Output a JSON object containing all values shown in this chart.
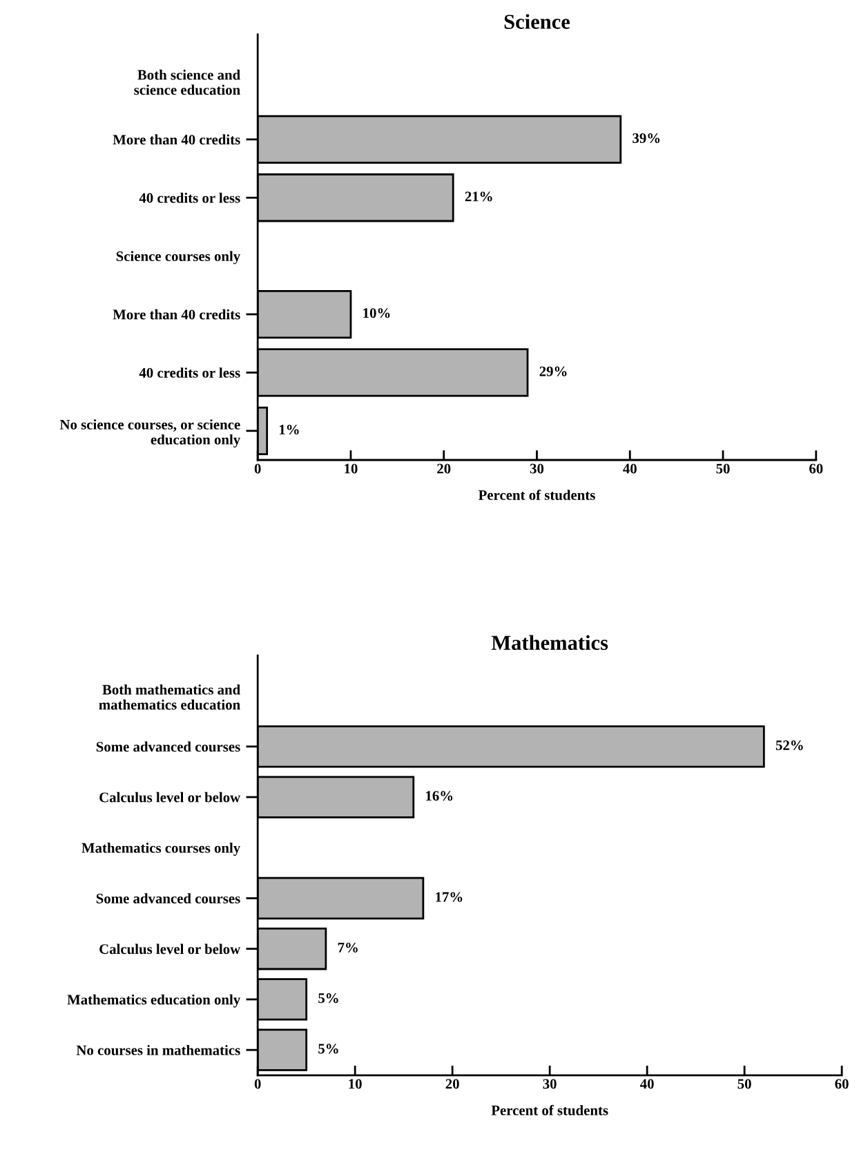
{
  "chart_data": [
    {
      "type": "bar",
      "orientation": "horizontal",
      "title": "Science",
      "xlabel": "Percent of students",
      "categories": [
        "Both science and\nscience education",
        "More than 40 credits",
        "40 credits or less",
        "Science courses only",
        "More than 40 credits",
        "40 credits or less",
        "No science courses, or science\neducation only"
      ],
      "values": [
        null,
        39,
        21,
        null,
        10,
        29,
        1
      ],
      "value_labels": [
        null,
        "39%",
        "21%",
        null,
        "10%",
        "29%",
        "1%"
      ],
      "color": "#b3b3b3",
      "xlim": [
        0,
        60
      ],
      "xticks": [
        0,
        10,
        20,
        30,
        40,
        50,
        60
      ],
      "grid": false
    },
    {
      "type": "bar",
      "orientation": "horizontal",
      "title": "Mathematics",
      "xlabel": "Percent of students",
      "categories": [
        "Both mathematics and\nmathematics education",
        "Some advanced courses",
        "Calculus level or below",
        "Mathematics courses only",
        "Some advanced courses",
        "Calculus level or below",
        "Mathematics education only",
        "No courses in mathematics"
      ],
      "values": [
        null,
        52,
        16,
        null,
        17,
        7,
        5,
        5
      ],
      "value_labels": [
        null,
        "52%",
        "16%",
        null,
        "17%",
        "7%",
        "5%",
        "5%"
      ],
      "color": "#b3b3b3",
      "xlim": [
        0,
        60
      ],
      "xticks": [
        0,
        10,
        20,
        30,
        40,
        50,
        60
      ],
      "grid": false
    }
  ]
}
